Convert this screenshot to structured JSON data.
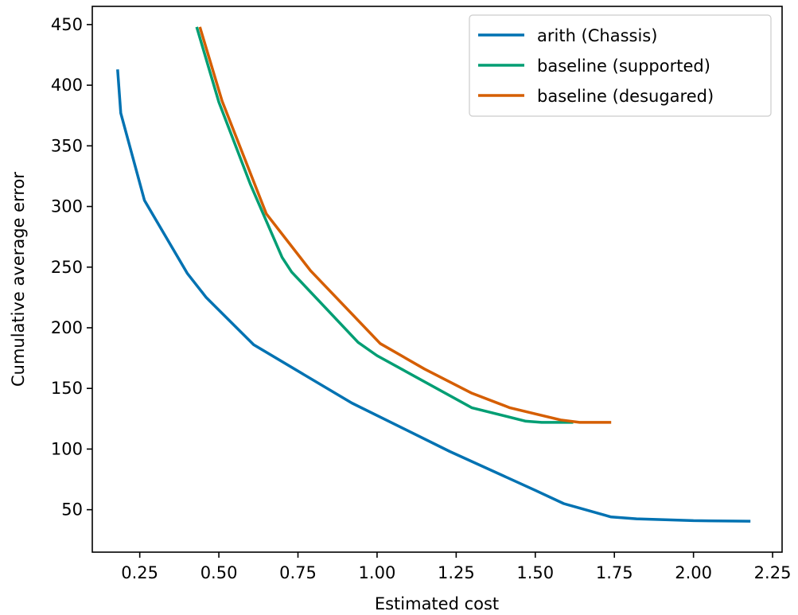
{
  "chart_data": {
    "type": "line",
    "xlabel": "Estimated cost",
    "ylabel": "Cumulative average error",
    "xlim": [
      0.1,
      2.28
    ],
    "ylim": [
      15,
      465
    ],
    "xticks": [
      0.25,
      0.5,
      0.75,
      1.0,
      1.25,
      1.5,
      1.75,
      2.0,
      2.25
    ],
    "xtick_labels": [
      "0.25",
      "0.50",
      "0.75",
      "1.00",
      "1.25",
      "1.50",
      "1.75",
      "2.00",
      "2.25"
    ],
    "yticks": [
      50,
      100,
      150,
      200,
      250,
      300,
      350,
      400,
      450
    ],
    "ytick_labels": [
      "50",
      "100",
      "150",
      "200",
      "250",
      "300",
      "350",
      "400",
      "450"
    ],
    "grid": false,
    "legend_position": "top-right",
    "series": [
      {
        "name": "arith (Chassis)",
        "color": "#0072b2",
        "x": [
          0.18,
          0.19,
          0.265,
          0.4,
          0.46,
          0.61,
          0.92,
          1.23,
          1.5,
          1.59,
          1.74,
          1.82,
          2.0,
          2.18
        ],
        "y": [
          413,
          377,
          305,
          245,
          225,
          186,
          138,
          98,
          66,
          55,
          44,
          42.5,
          41,
          40.5
        ]
      },
      {
        "name": "baseline (supported)",
        "color": "#009e73",
        "x": [
          0.43,
          0.5,
          0.6,
          0.7,
          0.73,
          0.94,
          1.0,
          1.3,
          1.47,
          1.52,
          1.62
        ],
        "y": [
          448,
          386,
          318,
          258,
          246,
          188,
          177,
          134,
          123,
          122,
          122
        ]
      },
      {
        "name": "baseline (desugared)",
        "color": "#d55e00",
        "x": [
          0.44,
          0.51,
          0.65,
          0.79,
          1.01,
          1.15,
          1.3,
          1.42,
          1.58,
          1.64,
          1.74
        ],
        "y": [
          448,
          387,
          294,
          247,
          187,
          166,
          146,
          134,
          124,
          122,
          122
        ]
      }
    ]
  }
}
